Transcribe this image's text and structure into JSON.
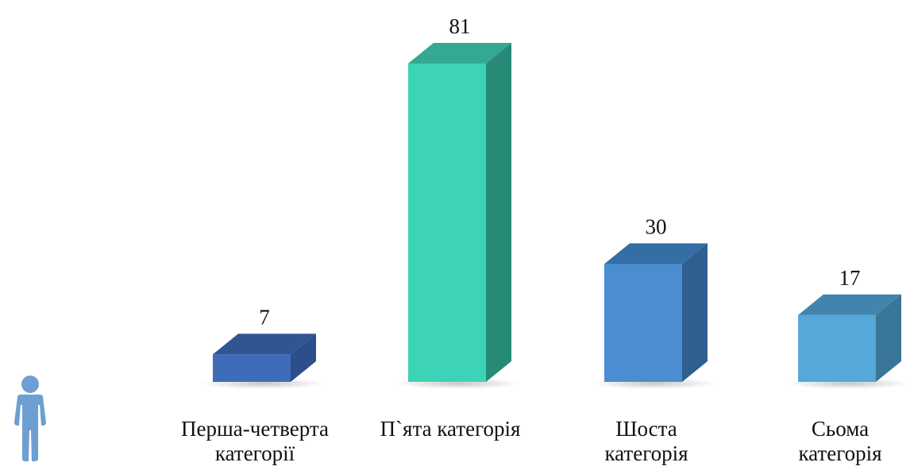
{
  "chart_data": {
    "type": "bar",
    "style": "3d-column",
    "categories": [
      "Перша-четверта\nкатегорії",
      "П`ята категорія",
      "Шоста\nкатегорія",
      "Сьома\nкатегорія"
    ],
    "values": [
      7,
      81,
      30,
      17
    ],
    "data_labels": [
      "7",
      "81",
      "30",
      "17"
    ],
    "title": "",
    "xlabel": "",
    "ylabel": "",
    "ylim": [
      0,
      81
    ],
    "grid": false,
    "legend": "none",
    "colors": [
      {
        "front": "#3F6CB8",
        "side": "#2C4E8A",
        "top": "#2F5592"
      },
      {
        "front": "#3DD3B6",
        "side": "#278A77",
        "top": "#33A892"
      },
      {
        "front": "#4A8DD0",
        "side": "#2F5F8F",
        "top": "#356DA6"
      },
      {
        "front": "#55A8D8",
        "side": "#3A7698",
        "top": "#4185AE"
      }
    ]
  },
  "decoration": {
    "icon": "person-icon",
    "color": "#6E9FD3"
  }
}
